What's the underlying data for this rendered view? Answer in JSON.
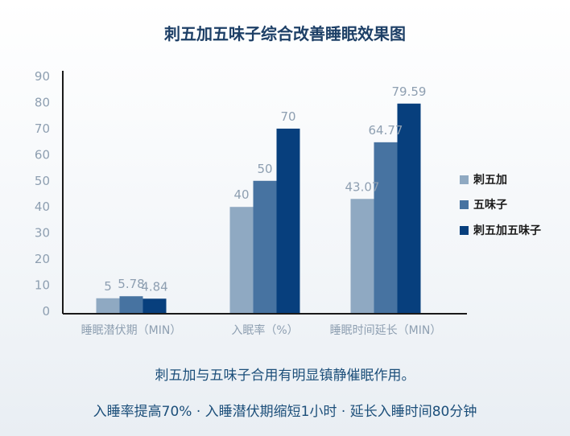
{
  "chart_data": {
    "type": "bar",
    "title": "刺五加五味子综合改善睡眠效果图",
    "categories": [
      "睡眠潜伏期（MIN）",
      "入眠率（%）",
      "睡眠时间延长（MIN）"
    ],
    "series": [
      {
        "name": "刺五加",
        "values": [
          5,
          40,
          43.07
        ],
        "labels": [
          "5",
          "40",
          "43.07"
        ],
        "color": "#8fa9c2"
      },
      {
        "name": "五味子",
        "values": [
          5.78,
          50,
          64.77
        ],
        "labels": [
          "5.78",
          "50",
          "64.77"
        ],
        "color": "#4773a1"
      },
      {
        "name": "刺五加五味子",
        "values": [
          4.84,
          70,
          79.59
        ],
        "labels": [
          "4.84",
          "70",
          "79.59"
        ],
        "color": "#073f7d"
      }
    ],
    "yticks": [
      0,
      10,
      20,
      30,
      40,
      50,
      60,
      70,
      80,
      90
    ],
    "ylim": [
      0,
      90
    ],
    "grid": false,
    "legend": "right"
  },
  "captions": {
    "line1": "刺五加与五味子合用有明显镇静催眠作用。",
    "line2": "入睡率提高70% · 入睡潜伏期缩短1小时 · 延长入睡时间80分钟"
  }
}
